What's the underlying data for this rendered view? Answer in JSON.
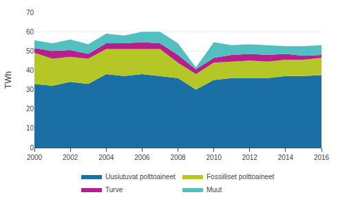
{
  "chart_data": {
    "type": "area",
    "stacked": true,
    "x": [
      2000,
      2001,
      2002,
      2003,
      2004,
      2005,
      2006,
      2007,
      2008,
      2009,
      2010,
      2011,
      2012,
      2013,
      2014,
      2015,
      2016
    ],
    "series": [
      {
        "name": "Uusiutuvat polttoaineet",
        "color": "#1a6fa5",
        "values": [
          33,
          32,
          34,
          33,
          38,
          37,
          38,
          37,
          36,
          30,
          35,
          36,
          36,
          36,
          37,
          37,
          37.5
        ]
      },
      {
        "name": "Fossiiliset polttoaineet",
        "color": "#b5c727",
        "values": [
          16,
          14,
          13,
          13,
          13,
          14,
          13,
          14,
          8,
          8,
          9,
          8.5,
          9,
          8.5,
          8.5,
          8.5,
          9
        ]
      },
      {
        "name": "Turve",
        "color": "#b5208c",
        "values": [
          2.5,
          4,
          3.5,
          2.5,
          3,
          3,
          3.5,
          3,
          4,
          2.5,
          2.5,
          3.5,
          3.5,
          3.5,
          3,
          2,
          1.5
        ]
      },
      {
        "name": "Muut",
        "color": "#52bfc0",
        "values": [
          4,
          4,
          5.5,
          5,
          5,
          4,
          5.5,
          6,
          6,
          1,
          8,
          5,
          5,
          5,
          4,
          5,
          5
        ]
      }
    ],
    "ylabel": "TWh",
    "xlim": [
      2000,
      2016
    ],
    "xticks": [
      2000,
      2002,
      2004,
      2006,
      2008,
      2010,
      2012,
      2014,
      2016
    ],
    "ylim": [
      0,
      70
    ],
    "yticks": [
      0,
      10,
      20,
      30,
      40,
      50,
      60,
      70
    ],
    "grid": true,
    "legend": "bottom"
  }
}
